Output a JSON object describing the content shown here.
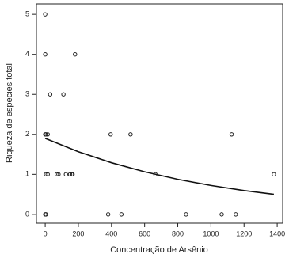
{
  "chart_data": {
    "type": "scatter",
    "x_label": "Concentração de Arsênio",
    "y_label": "Riqueza de espécies total",
    "series": [
      {
        "color": "#222222",
        "x": [
          0,
          0,
          180,
          30,
          110,
          0,
          5,
          15,
          395,
          515,
          1125,
          5,
          15,
          70,
          80,
          125,
          150,
          160,
          165,
          665,
          1380,
          0,
          5,
          380,
          460,
          850,
          1065,
          1150
        ],
        "values": [
          5,
          4,
          4,
          3,
          3,
          2,
          2,
          2,
          2,
          2,
          2,
          1,
          1,
          1,
          1,
          1,
          1,
          1,
          1,
          1,
          1,
          0,
          0,
          0,
          0,
          0,
          0,
          0
        ]
      }
    ],
    "fit": {
      "color": "#111111",
      "x": [
        0,
        200,
        400,
        600,
        800,
        1000,
        1200,
        1380
      ],
      "values": [
        1.9,
        1.566,
        1.29,
        1.064,
        0.876,
        0.722,
        0.595,
        0.5
      ]
    },
    "xlim": [
      -53,
      1433
    ],
    "ylim": [
      -0.22,
      5.26
    ],
    "xticks": [
      0,
      200,
      400,
      600,
      800,
      1000,
      1200,
      1400
    ],
    "yticks": [
      0,
      1,
      2,
      3,
      4,
      5
    ]
  }
}
